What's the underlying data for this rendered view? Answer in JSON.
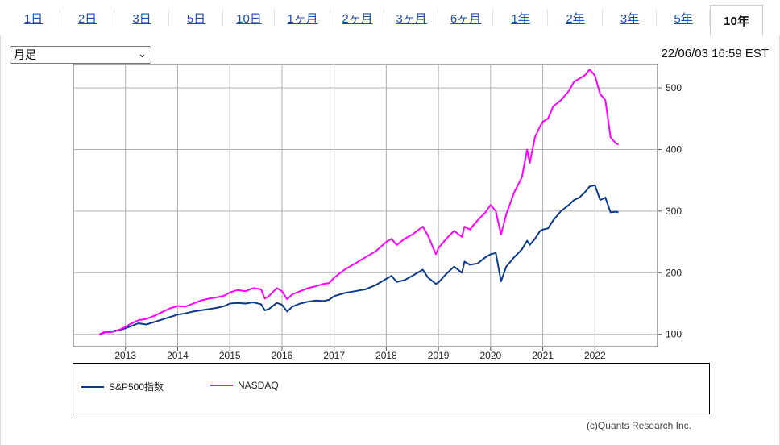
{
  "tabs": [
    {
      "label": "1日",
      "active": false
    },
    {
      "label": "2日",
      "active": false
    },
    {
      "label": "3日",
      "active": false
    },
    {
      "label": "5日",
      "active": false
    },
    {
      "label": "10日",
      "active": false
    },
    {
      "label": "1ヶ月",
      "active": false
    },
    {
      "label": "2ヶ月",
      "active": false
    },
    {
      "label": "3ヶ月",
      "active": false
    },
    {
      "label": "6ヶ月",
      "active": false
    },
    {
      "label": "1年",
      "active": false
    },
    {
      "label": "2年",
      "active": false
    },
    {
      "label": "3年",
      "active": false
    },
    {
      "label": "5年",
      "active": false
    },
    {
      "label": "10年",
      "active": true
    }
  ],
  "select": {
    "value": "月足"
  },
  "timestamp": "22/06/03 16:59 EST",
  "credit": "(c)Quants Research Inc.",
  "colors": {
    "sp500": "#0c3a8c",
    "nasdaq": "#ff00ff",
    "tab_link": "#1d4fb1"
  },
  "chart_data": {
    "type": "line",
    "x_ticks": [
      "2013",
      "2014",
      "2015",
      "2016",
      "2017",
      "2018",
      "2019",
      "2020",
      "2021",
      "2022"
    ],
    "y_ticks": [
      100,
      200,
      300,
      400,
      500
    ],
    "ylim": [
      80,
      538
    ],
    "grid": true,
    "legend_position": "bottom",
    "series": [
      {
        "name": "S&P500指数",
        "color": "#0c3a8c",
        "x": [
          2012.5,
          2012.6,
          2012.7,
          2012.8,
          2012.9,
          2013.0,
          2013.1,
          2013.25,
          2013.4,
          2013.55,
          2013.7,
          2013.85,
          2014.0,
          2014.15,
          2014.3,
          2014.45,
          2014.6,
          2014.75,
          2014.9,
          2015.0,
          2015.15,
          2015.3,
          2015.45,
          2015.6,
          2015.67,
          2015.75,
          2015.9,
          2016.0,
          2016.1,
          2016.2,
          2016.35,
          2016.5,
          2016.65,
          2016.8,
          2016.9,
          2017.0,
          2017.2,
          2017.4,
          2017.6,
          2017.8,
          2018.0,
          2018.1,
          2018.2,
          2018.35,
          2018.5,
          2018.7,
          2018.8,
          2018.95,
          2019.0,
          2019.15,
          2019.3,
          2019.45,
          2019.5,
          2019.6,
          2019.75,
          2019.9,
          2020.0,
          2020.1,
          2020.2,
          2020.3,
          2020.45,
          2020.6,
          2020.7,
          2020.75,
          2020.85,
          2020.95,
          2021.0,
          2021.1,
          2021.2,
          2021.35,
          2021.5,
          2021.6,
          2021.7,
          2021.8,
          2021.9,
          2022.0,
          2022.1,
          2022.2,
          2022.3,
          2022.4,
          2022.45
        ],
        "values": [
          100,
          103,
          104,
          106,
          107,
          110,
          113,
          118,
          116,
          120,
          124,
          128,
          132,
          134,
          137,
          139,
          141,
          143,
          146,
          150,
          151,
          150,
          152,
          149,
          139,
          141,
          151,
          148,
          137,
          145,
          150,
          153,
          155,
          154,
          156,
          162,
          167,
          170,
          173,
          180,
          190,
          195,
          185,
          188,
          195,
          205,
          192,
          182,
          184,
          198,
          210,
          200,
          218,
          213,
          215,
          225,
          230,
          232,
          186,
          210,
          225,
          238,
          252,
          245,
          255,
          268,
          270,
          272,
          285,
          300,
          310,
          318,
          322,
          330,
          340,
          342,
          318,
          322,
          298,
          299,
          298
        ]
      },
      {
        "name": "NASDAQ",
        "color": "#ff00ff",
        "x": [
          2012.5,
          2012.6,
          2012.7,
          2012.8,
          2012.9,
          2013.0,
          2013.1,
          2013.25,
          2013.4,
          2013.55,
          2013.7,
          2013.85,
          2014.0,
          2014.15,
          2014.3,
          2014.45,
          2014.6,
          2014.75,
          2014.9,
          2015.0,
          2015.15,
          2015.3,
          2015.45,
          2015.6,
          2015.67,
          2015.75,
          2015.9,
          2016.0,
          2016.1,
          2016.2,
          2016.35,
          2016.5,
          2016.65,
          2016.8,
          2016.9,
          2017.0,
          2017.2,
          2017.4,
          2017.6,
          2017.8,
          2018.0,
          2018.1,
          2018.2,
          2018.35,
          2018.5,
          2018.7,
          2018.8,
          2018.95,
          2019.0,
          2019.15,
          2019.3,
          2019.45,
          2019.5,
          2019.6,
          2019.75,
          2019.9,
          2020.0,
          2020.1,
          2020.2,
          2020.3,
          2020.45,
          2020.6,
          2020.7,
          2020.75,
          2020.85,
          2020.95,
          2021.0,
          2021.1,
          2021.2,
          2021.35,
          2021.5,
          2021.6,
          2021.7,
          2021.8,
          2021.9,
          2022.0,
          2022.1,
          2022.2,
          2022.3,
          2022.4,
          2022.45
        ],
        "values": [
          100,
          104,
          103,
          105,
          108,
          112,
          117,
          123,
          125,
          130,
          136,
          142,
          146,
          145,
          150,
          155,
          158,
          160,
          163,
          168,
          172,
          170,
          175,
          173,
          158,
          162,
          175,
          170,
          157,
          165,
          170,
          175,
          178,
          182,
          183,
          192,
          205,
          215,
          225,
          235,
          250,
          255,
          245,
          255,
          262,
          275,
          260,
          230,
          240,
          255,
          268,
          258,
          275,
          270,
          285,
          298,
          310,
          300,
          262,
          295,
          330,
          355,
          400,
          378,
          420,
          438,
          445,
          450,
          470,
          480,
          495,
          510,
          515,
          520,
          530,
          520,
          490,
          480,
          420,
          410,
          408
        ]
      }
    ]
  }
}
